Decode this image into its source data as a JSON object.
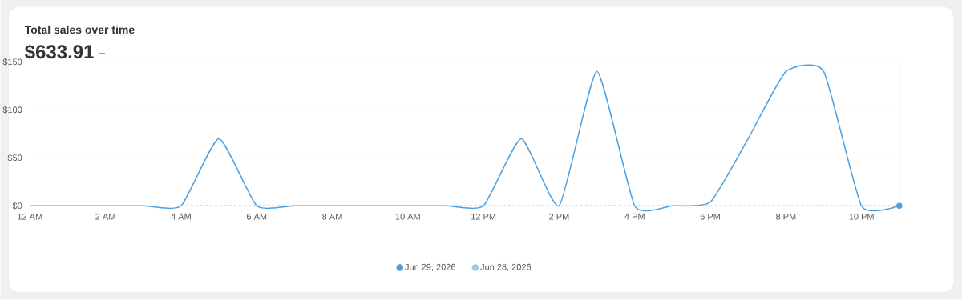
{
  "chart_data": {
    "type": "line",
    "title": "Total sales over time",
    "subtitle": "$633.91",
    "annotations": [
      "–"
    ],
    "x": [
      "2026-06-29T00:00",
      "2026-06-29T01:00",
      "2026-06-29T02:00",
      "2026-06-29T03:00",
      "2026-06-29T04:00",
      "2026-06-29T05:00",
      "2026-06-29T06:00",
      "2026-06-29T07:00",
      "2026-06-29T08:00",
      "2026-06-29T09:00",
      "2026-06-29T10:00",
      "2026-06-29T11:00",
      "2026-06-29T12:00",
      "2026-06-29T13:00",
      "2026-06-29T14:00",
      "2026-06-29T15:00",
      "2026-06-29T16:00",
      "2026-06-29T17:00",
      "2026-06-29T18:00",
      "2026-06-29T19:00",
      "2026-06-29T20:00",
      "2026-06-29T21:00",
      "2026-06-29T22:00",
      "2026-06-29T23:00"
    ],
    "xlim": [
      "2026-06-29T00:00",
      "2026-06-29T23:00"
    ],
    "xticks": [
      {
        "value": "2026-06-29T00:00",
        "label": "12 AM"
      },
      {
        "value": "2026-06-29T02:00",
        "label": "2 AM"
      },
      {
        "value": "2026-06-29T04:00",
        "label": "4 AM"
      },
      {
        "value": "2026-06-29T06:00",
        "label": "6 AM"
      },
      {
        "value": "2026-06-29T08:00",
        "label": "8 AM"
      },
      {
        "value": "2026-06-29T10:00",
        "label": "10 AM"
      },
      {
        "value": "2026-06-29T12:00",
        "label": "12 PM"
      },
      {
        "value": "2026-06-29T14:00",
        "label": "2 PM"
      },
      {
        "value": "2026-06-29T16:00",
        "label": "4 PM"
      },
      {
        "value": "2026-06-29T18:00",
        "label": "6 PM"
      },
      {
        "value": "2026-06-29T20:00",
        "label": "8 PM"
      },
      {
        "value": "2026-06-29T22:00",
        "label": "10 PM"
      }
    ],
    "ylim": [
      0,
      150
    ],
    "yticks": [
      {
        "value": 0,
        "label": "$0"
      },
      {
        "value": 50,
        "label": "$50"
      },
      {
        "value": 100,
        "label": "$100"
      },
      {
        "value": 150,
        "label": "$150"
      }
    ],
    "grid": "y",
    "legend": "bottom",
    "series": [
      {
        "name": "Jun 29, 2026",
        "color": "#4a9fe0",
        "line_style": "solid",
        "values": [
          0,
          0,
          0,
          0,
          0,
          70,
          0,
          0,
          0,
          0,
          0,
          0,
          0,
          70,
          0,
          140,
          0,
          0,
          4,
          70,
          140,
          140,
          0,
          0
        ]
      },
      {
        "name": "Jun 28, 2026",
        "color": "#9ecbec",
        "line_style": "dashed",
        "values": [
          null,
          null,
          null,
          null,
          0,
          0,
          0,
          0,
          0,
          0,
          0,
          0,
          0,
          0,
          0,
          0,
          0,
          0,
          0,
          0,
          0,
          0,
          0,
          0
        ]
      }
    ]
  }
}
